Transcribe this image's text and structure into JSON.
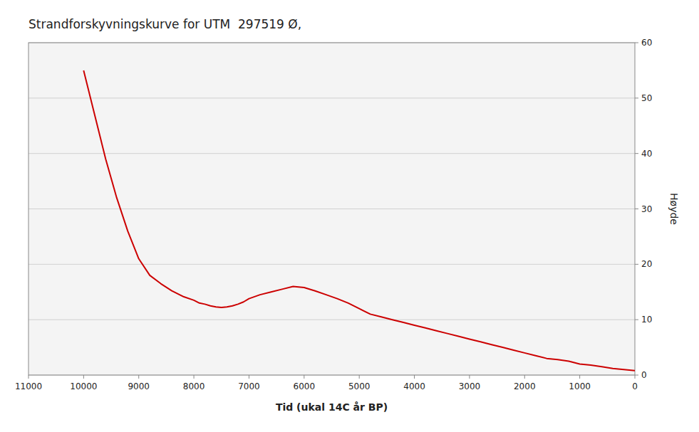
{
  "chart_data": {
    "type": "line",
    "title": "Strandforskyvningskurve for UTM  297519 Ø,",
    "xlabel": "Tid (ukal 14C år BP)",
    "ylabel": "Høyde",
    "x": [
      10000,
      9800,
      9600,
      9400,
      9200,
      9000,
      8800,
      8600,
      8400,
      8200,
      8000,
      7900,
      7800,
      7700,
      7600,
      7500,
      7400,
      7300,
      7200,
      7100,
      7000,
      6800,
      6600,
      6400,
      6200,
      6000,
      5800,
      5600,
      5400,
      5200,
      5000,
      4800,
      4600,
      4400,
      4200,
      4000,
      3800,
      3600,
      3400,
      3200,
      3000,
      2800,
      2600,
      2400,
      2200,
      2000,
      1800,
      1600,
      1400,
      1200,
      1000,
      800,
      600,
      400,
      200,
      0
    ],
    "values": [
      55,
      47,
      39,
      32,
      26,
      21,
      18,
      16.5,
      15.2,
      14.2,
      13.5,
      13.0,
      12.8,
      12.5,
      12.3,
      12.2,
      12.3,
      12.5,
      12.8,
      13.2,
      13.8,
      14.5,
      15.0,
      15.5,
      16.0,
      15.8,
      15.2,
      14.5,
      13.8,
      13.0,
      12.0,
      11.0,
      10.5,
      10.0,
      9.5,
      9.0,
      8.5,
      8.0,
      7.5,
      7.0,
      6.5,
      6.0,
      5.5,
      5.0,
      4.5,
      4.0,
      3.5,
      3.0,
      2.8,
      2.5,
      2.0,
      1.8,
      1.5,
      1.2,
      1.0,
      0.8
    ],
    "color": "#cc0000",
    "xlim": [
      11000,
      0
    ],
    "ylim": [
      0,
      60
    ],
    "xticks": [
      11000,
      10000,
      9000,
      8000,
      7000,
      6000,
      5000,
      4000,
      3000,
      2000,
      1000,
      0
    ],
    "yticks": [
      0,
      10,
      20,
      30,
      40,
      50,
      60
    ],
    "grid": true
  }
}
